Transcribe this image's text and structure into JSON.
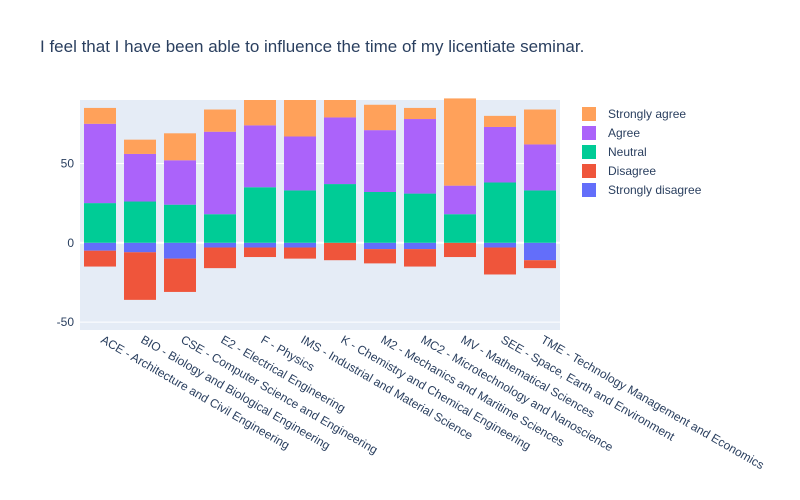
{
  "chart_data": {
    "type": "bar",
    "barmode": "relative",
    "title": "I feel that I have been able to influence the time of my licentiate seminar.",
    "xlabel": "",
    "ylabel": "",
    "ylim": [
      -55,
      90
    ],
    "yticks": [
      -50,
      0,
      50
    ],
    "grid": true,
    "legend_position": "right",
    "categories": [
      "ACE - Architecture and Civil Engineering",
      "BIO - Biology and Biological Engineering",
      "CSE - Computer Science and Engineering",
      "E2 - Electrical Engineering",
      "F - Physics",
      "IMS - Industrial and Material Science",
      "K - Chemistry and Chemical Engineering",
      "M2 - Mechanics and Maritime Sciences",
      "MC2 - Microtechnology and Nanoscience",
      "MV - Mathematical Sciences",
      "SEE - Space, Earth and Environment",
      "TME - Technology Management and Economics"
    ],
    "series": [
      {
        "name": "Strongly disagree",
        "color": "#636efa",
        "values": [
          -5,
          -6,
          -10,
          -3,
          -3,
          -3,
          0,
          -4,
          -4,
          0,
          -3,
          -11
        ]
      },
      {
        "name": "Disagree",
        "color": "#EF553B",
        "values": [
          -10,
          -30,
          -21,
          -13,
          -6,
          -7,
          -11,
          -9,
          -11,
          -9,
          -17,
          -5
        ]
      },
      {
        "name": "Neutral",
        "color": "#00cc96",
        "values": [
          25,
          26,
          24,
          18,
          35,
          33,
          37,
          32,
          31,
          18,
          38,
          33
        ]
      },
      {
        "name": "Agree",
        "color": "#ab63fa",
        "values": [
          50,
          30,
          28,
          52,
          39,
          34,
          42,
          39,
          47,
          18,
          35,
          29
        ]
      },
      {
        "name": "Strongly agree",
        "color": "#FFA15A",
        "values": [
          10,
          9,
          17,
          14,
          16,
          23,
          11,
          16,
          7,
          55,
          7,
          22
        ]
      }
    ],
    "legend_order": [
      "Strongly agree",
      "Agree",
      "Neutral",
      "Disagree",
      "Strongly disagree"
    ]
  }
}
